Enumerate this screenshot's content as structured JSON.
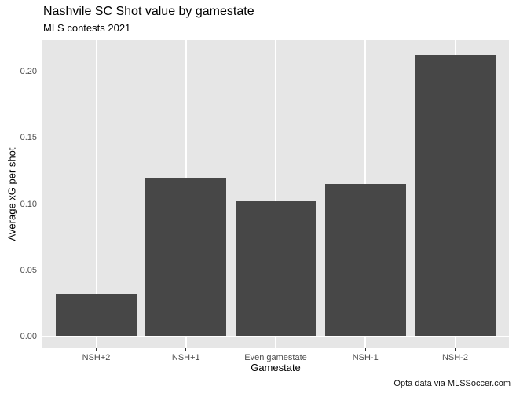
{
  "chart_data": {
    "type": "bar",
    "title": "Nashvile SC Shot value by gamestate",
    "subtitle": "MLS contests 2021",
    "caption": "Opta data via MLSSoccer.com",
    "categories": [
      "NSH+2",
      "NSH+1",
      "Even gamestate",
      "NSH-1",
      "NSH-2"
    ],
    "values": [
      0.032,
      0.12,
      0.102,
      0.115,
      0.213
    ],
    "xlabel": "Gamestate",
    "ylabel": "Average xG per shot",
    "ylim": [
      -0.009,
      0.224
    ],
    "yticks": [
      0,
      0.05,
      0.1,
      0.15,
      0.2
    ],
    "ytick_labels": [
      "0.00",
      "0.05",
      "0.10",
      "0.15",
      "0.20"
    ],
    "yminor": [
      0.025,
      0.075,
      0.125,
      0.175
    ],
    "grid": true,
    "legend": "none",
    "bar_width_fraction": 0.9,
    "colors": {
      "bar": "#474747",
      "panel_bg": "#E6E6E6",
      "grid_major": "#FFFFFF",
      "grid_minor": "#F1F1F1",
      "tick_text": "#4D4D4D",
      "text": "#000000"
    }
  }
}
